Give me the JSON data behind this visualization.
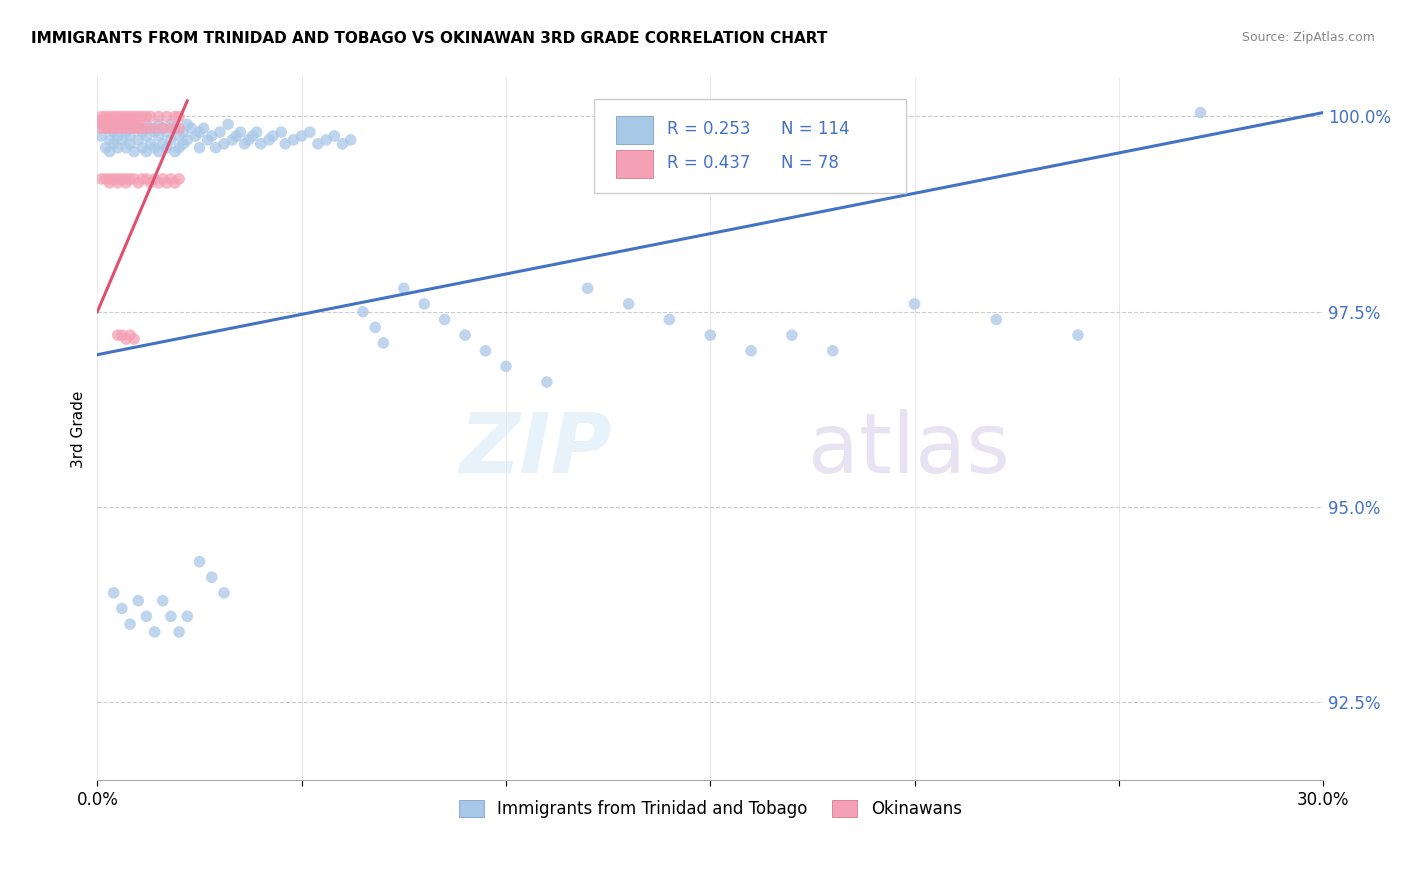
{
  "title": "IMMIGRANTS FROM TRINIDAD AND TOBAGO VS OKINAWAN 3RD GRADE CORRELATION CHART",
  "source": "Source: ZipAtlas.com",
  "ylabel_label": "3rd Grade",
  "xmin": 0.0,
  "xmax": 0.3,
  "ymin": 0.915,
  "ymax": 1.005,
  "y_ticks": [
    0.925,
    0.95,
    0.975,
    1.0
  ],
  "y_tick_labels": [
    "92.5%",
    "95.0%",
    "97.5%",
    "100.0%"
  ],
  "x_ticks": [
    0.0,
    0.05,
    0.1,
    0.15,
    0.2,
    0.25,
    0.3
  ],
  "x_tick_labels": [
    "0.0%",
    "",
    "",
    "",
    "",
    "",
    "30.0%"
  ],
  "blue_color": "#a8c8e8",
  "pink_color": "#f4a0b5",
  "line_blue_color": "#4472c4",
  "line_pink_color": "#e05070",
  "legend_label_blue": "Immigrants from Trinidad and Tobago",
  "legend_label_pink": "Okinawans",
  "blue_line_x0": 0.0,
  "blue_line_x1": 0.3,
  "blue_line_y0": 0.9695,
  "blue_line_y1": 1.0005,
  "pink_line_x0": 0.0,
  "pink_line_x1": 0.022,
  "pink_line_y0": 0.975,
  "pink_line_y1": 1.002,
  "blue_scatter_x": [
    0.001,
    0.001,
    0.002,
    0.002,
    0.003,
    0.003,
    0.003,
    0.004,
    0.004,
    0.005,
    0.005,
    0.005,
    0.006,
    0.006,
    0.007,
    0.007,
    0.007,
    0.008,
    0.008,
    0.009,
    0.009,
    0.01,
    0.01,
    0.011,
    0.011,
    0.012,
    0.012,
    0.012,
    0.013,
    0.013,
    0.014,
    0.014,
    0.015,
    0.015,
    0.015,
    0.016,
    0.016,
    0.017,
    0.017,
    0.018,
    0.018,
    0.019,
    0.019,
    0.02,
    0.02,
    0.021,
    0.021,
    0.022,
    0.022,
    0.023,
    0.024,
    0.025,
    0.025,
    0.026,
    0.027,
    0.028,
    0.029,
    0.03,
    0.031,
    0.032,
    0.033,
    0.034,
    0.035,
    0.036,
    0.037,
    0.038,
    0.039,
    0.04,
    0.042,
    0.043,
    0.045,
    0.046,
    0.048,
    0.05,
    0.052,
    0.054,
    0.056,
    0.058,
    0.06,
    0.062,
    0.065,
    0.068,
    0.07,
    0.075,
    0.08,
    0.085,
    0.09,
    0.095,
    0.1,
    0.11,
    0.12,
    0.13,
    0.14,
    0.15,
    0.16,
    0.17,
    0.18,
    0.2,
    0.22,
    0.24,
    0.004,
    0.006,
    0.008,
    0.01,
    0.012,
    0.014,
    0.016,
    0.018,
    0.02,
    0.022,
    0.025,
    0.028,
    0.031,
    0.27
  ],
  "blue_scatter_y": [
    0.999,
    0.9975,
    0.9985,
    0.996,
    0.9995,
    0.997,
    0.9955,
    0.998,
    0.9965,
    0.999,
    0.9975,
    0.996,
    0.9985,
    0.997,
    0.9995,
    0.998,
    0.996,
    0.9975,
    0.9965,
    0.999,
    0.9955,
    0.9985,
    0.997,
    0.998,
    0.996,
    0.999,
    0.9975,
    0.9955,
    0.9985,
    0.9965,
    0.998,
    0.996,
    0.999,
    0.9975,
    0.9955,
    0.9985,
    0.9965,
    0.998,
    0.996,
    0.999,
    0.997,
    0.9985,
    0.9955,
    0.9975,
    0.996,
    0.998,
    0.9965,
    0.999,
    0.997,
    0.9985,
    0.9975,
    0.998,
    0.996,
    0.9985,
    0.997,
    0.9975,
    0.996,
    0.998,
    0.9965,
    0.999,
    0.997,
    0.9975,
    0.998,
    0.9965,
    0.997,
    0.9975,
    0.998,
    0.9965,
    0.997,
    0.9975,
    0.998,
    0.9965,
    0.997,
    0.9975,
    0.998,
    0.9965,
    0.997,
    0.9975,
    0.9965,
    0.997,
    0.975,
    0.973,
    0.971,
    0.978,
    0.976,
    0.974,
    0.972,
    0.97,
    0.968,
    0.966,
    0.978,
    0.976,
    0.974,
    0.972,
    0.97,
    0.972,
    0.97,
    0.976,
    0.974,
    0.972,
    0.939,
    0.937,
    0.935,
    0.938,
    0.936,
    0.934,
    0.938,
    0.936,
    0.934,
    0.936,
    0.943,
    0.941,
    0.939,
    1.0005
  ],
  "pink_scatter_x": [
    0.001,
    0.001,
    0.001,
    0.001,
    0.002,
    0.002,
    0.002,
    0.002,
    0.003,
    0.003,
    0.003,
    0.003,
    0.004,
    0.004,
    0.004,
    0.004,
    0.005,
    0.005,
    0.005,
    0.005,
    0.006,
    0.006,
    0.006,
    0.007,
    0.007,
    0.007,
    0.008,
    0.008,
    0.008,
    0.009,
    0.009,
    0.009,
    0.01,
    0.01,
    0.01,
    0.011,
    0.011,
    0.012,
    0.012,
    0.013,
    0.014,
    0.015,
    0.016,
    0.017,
    0.018,
    0.019,
    0.02,
    0.02,
    0.001,
    0.002,
    0.003,
    0.003,
    0.004,
    0.005,
    0.005,
    0.006,
    0.007,
    0.007,
    0.008,
    0.009,
    0.01,
    0.011,
    0.012,
    0.013,
    0.014,
    0.015,
    0.016,
    0.017,
    0.018,
    0.019,
    0.02,
    0.005,
    0.006,
    0.007,
    0.008,
    0.009
  ],
  "pink_scatter_y": [
    1.0,
    0.9995,
    0.999,
    0.9985,
    1.0,
    0.9995,
    0.999,
    0.9985,
    1.0,
    0.9995,
    0.999,
    0.9985,
    1.0,
    0.9995,
    0.999,
    0.9985,
    1.0,
    0.9995,
    0.999,
    0.9985,
    1.0,
    0.9995,
    0.9985,
    1.0,
    0.9995,
    0.9985,
    1.0,
    0.9995,
    0.9985,
    1.0,
    0.9995,
    0.9985,
    1.0,
    0.9995,
    0.9985,
    1.0,
    0.9985,
    1.0,
    0.9985,
    1.0,
    0.9985,
    1.0,
    0.9985,
    1.0,
    0.9985,
    1.0,
    0.9985,
    1.0,
    0.992,
    0.992,
    0.992,
    0.9915,
    0.992,
    0.992,
    0.9915,
    0.992,
    0.992,
    0.9915,
    0.992,
    0.992,
    0.9915,
    0.992,
    0.992,
    0.9915,
    0.992,
    0.9915,
    0.992,
    0.9915,
    0.992,
    0.9915,
    0.992,
    0.972,
    0.972,
    0.9715,
    0.972,
    0.9715
  ]
}
